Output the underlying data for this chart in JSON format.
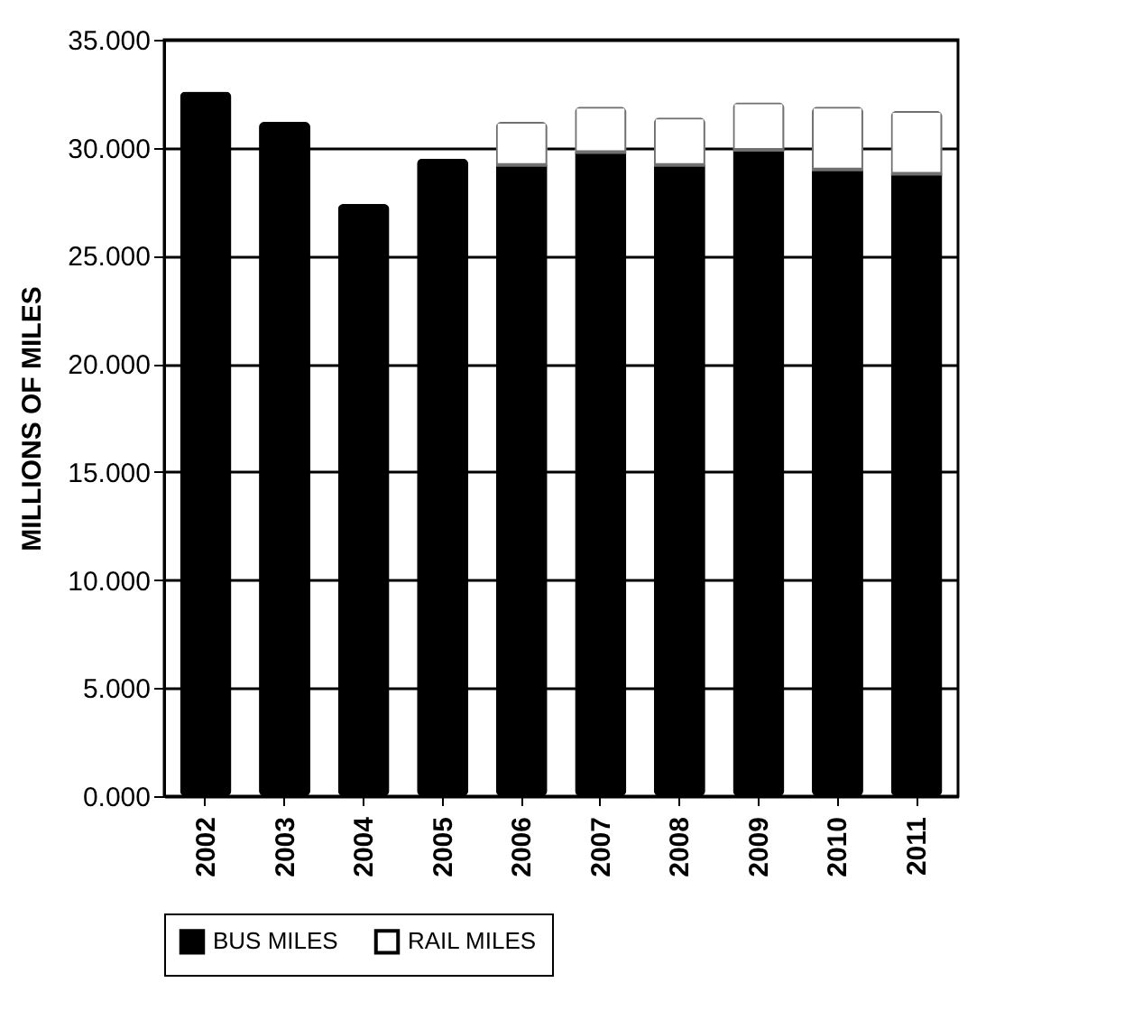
{
  "chart_data": {
    "type": "bar",
    "stacked": true,
    "ylabel": "MILLIONS OF MILES",
    "categories": [
      "2002",
      "2003",
      "2004",
      "2005",
      "2006",
      "2007",
      "2008",
      "2009",
      "2010",
      "2011"
    ],
    "series": [
      {
        "name": "BUS MILES",
        "color": "#000000",
        "values": [
          32.6,
          31.2,
          27.4,
          29.5,
          29.2,
          29.8,
          29.2,
          29.9,
          29.0,
          28.8
        ]
      },
      {
        "name": "RAIL MILES",
        "color": "#ffffff",
        "values": [
          null,
          null,
          null,
          null,
          2.0,
          2.1,
          2.2,
          2.2,
          2.9,
          2.9
        ]
      }
    ],
    "ylim": [
      0,
      35
    ],
    "yticks": [
      {
        "value": 0,
        "label": "0.000"
      },
      {
        "value": 5,
        "label": "5.000"
      },
      {
        "value": 10,
        "label": "10.000"
      },
      {
        "value": 15,
        "label": "15.000"
      },
      {
        "value": 20,
        "label": "20.000"
      },
      {
        "value": 25,
        "label": "25.000"
      },
      {
        "value": 30,
        "label": "30.000"
      },
      {
        "value": 35,
        "label": "35.000"
      }
    ],
    "grid": "y",
    "legend": "bottom"
  }
}
